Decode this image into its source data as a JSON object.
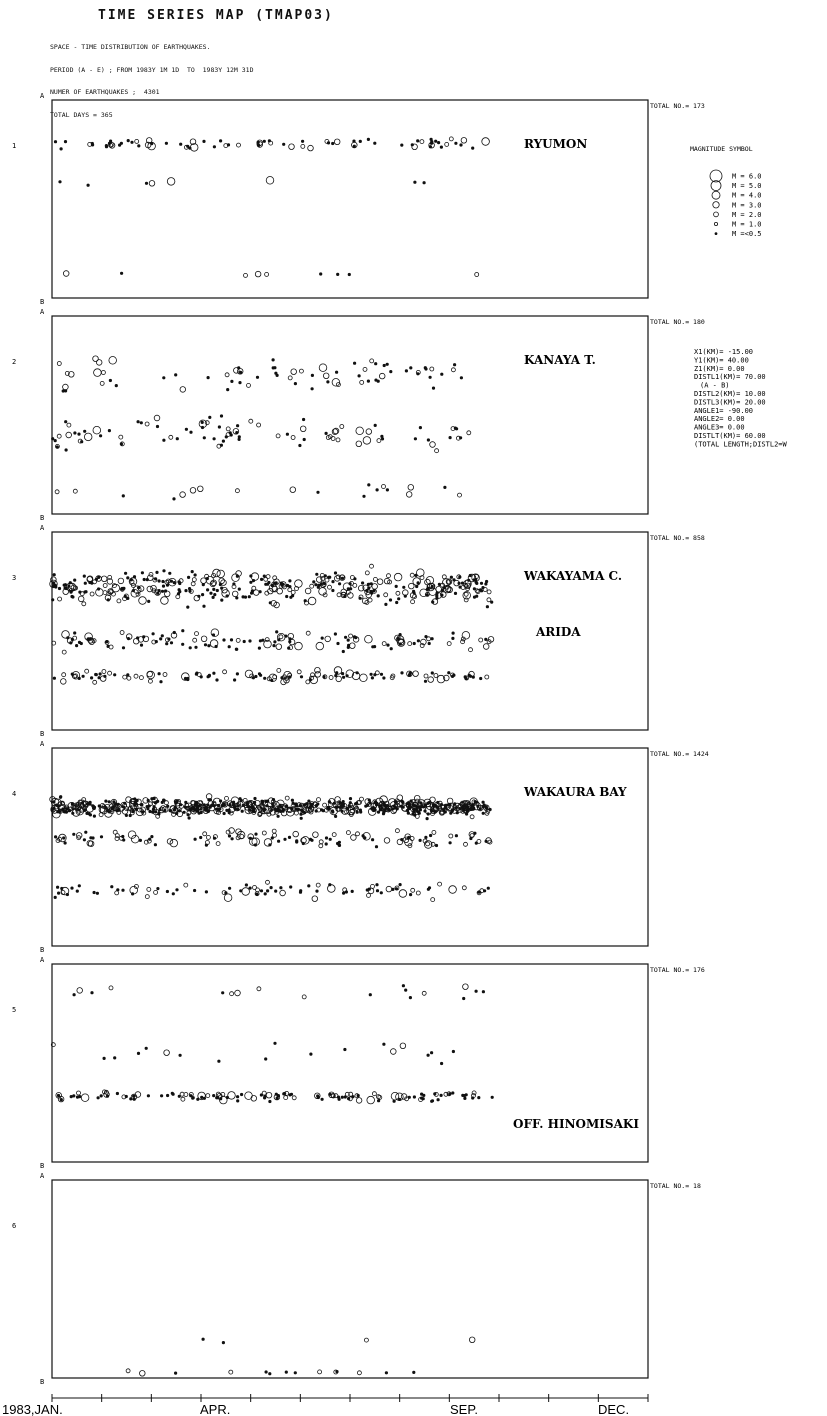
{
  "header": {
    "title": "TIME SERIES MAP (TMAP03)",
    "lines": [
      "SPACE - TIME DISTRIBUTION OF EARTHQUAKES.",
      "PERIOD (A - E) ; FROM 1983Y 1M 1D  TO  1983Y 12M 31D",
      "NUMER OF EARTHQUAKES ;  4301",
      "TOTAL DAYS = 365"
    ]
  },
  "chart_data": {
    "type": "scatter",
    "x_unit": "day of year 1983",
    "xlim": [
      0,
      365
    ],
    "x_ticks": {
      "1983,JAN.": 1,
      "APR.": 91,
      "SEP.": 244,
      "DEC.": 335
    },
    "y_axis": {
      "top": "A",
      "bottom": "B"
    },
    "panels": [
      {
        "index": "1",
        "region": "RYUMON",
        "total": "TOTAL NO.= 173",
        "density": 95,
        "active_end": 270,
        "bands": [
          {
            "y": 0.22,
            "spread": 0.035,
            "w": 0.82
          },
          {
            "y": 0.42,
            "spread": 0.02,
            "w": 0.08
          },
          {
            "y": 0.88,
            "spread": 0.01,
            "w": 0.1
          }
        ]
      },
      {
        "index": "2",
        "region": "KANAYA T.",
        "total": "TOTAL NO.= 180",
        "density": 180,
        "active_end": 260,
        "bands": [
          {
            "y": 0.3,
            "spread": 0.12,
            "w": 0.45
          },
          {
            "y": 0.6,
            "spread": 0.12,
            "w": 0.45
          },
          {
            "y": 0.88,
            "spread": 0.05,
            "w": 0.1
          }
        ]
      },
      {
        "index": "3",
        "region": "WAKAYAMA C.",
        "region2": "ARIDA",
        "total": "TOTAL NO.= 858",
        "density": 650,
        "active_end": 270,
        "bands": [
          {
            "y": 0.28,
            "spread": 0.12,
            "w": 0.62
          },
          {
            "y": 0.55,
            "spread": 0.07,
            "w": 0.2
          },
          {
            "y": 0.73,
            "spread": 0.04,
            "w": 0.18
          }
        ]
      },
      {
        "index": "4",
        "region": "WAKAURA BAY",
        "total": "TOTAL NO.= 1424",
        "density": 900,
        "active_end": 270,
        "bands": [
          {
            "y": 0.3,
            "spread": 0.06,
            "w": 0.75
          },
          {
            "y": 0.46,
            "spread": 0.06,
            "w": 0.15
          },
          {
            "y": 0.72,
            "spread": 0.05,
            "w": 0.1
          }
        ]
      },
      {
        "index": "5",
        "region": "OFF. HINOMISAKI",
        "total": "TOTAL NO.= 176",
        "density": 170,
        "active_end": 270,
        "bands": [
          {
            "y": 0.67,
            "spread": 0.035,
            "w": 0.78
          },
          {
            "y": 0.45,
            "spread": 0.1,
            "w": 0.12
          },
          {
            "y": 0.15,
            "spread": 0.08,
            "w": 0.1
          }
        ]
      },
      {
        "index": "6",
        "region": "",
        "total": "TOTAL NO.= 18",
        "density": 18,
        "active_end": 270,
        "bands": [
          {
            "y": 0.97,
            "spread": 0.02,
            "w": 0.7
          },
          {
            "y": 0.8,
            "spread": 0.04,
            "w": 0.3
          }
        ]
      }
    ],
    "magnitude_legend": {
      "title": "MAGNITUDE SYMBOL",
      "entries": [
        "M = 6.0",
        "M = 5.0",
        "M = 4.0",
        "M = 3.0",
        "M = 2.0",
        "M = 1.0",
        "M =<0.5"
      ]
    },
    "params": [
      "X1(KM)= -15.00",
      "Y1(KM)= 40.00",
      "Z1(KM)= 0.00",
      "DISTL1(KM)= 70.00",
      "(A - B)",
      "DISTL2(KM)= 10.00",
      "DISTL3(KM)= 20.00",
      "ANGLE1= -90.00",
      "ANGLE2= 0.00",
      "ANGLE3= 0.00",
      "DISTLT(KM)= 60.00",
      "(TOTAL LENGTH;DISTL2=W"
    ]
  }
}
